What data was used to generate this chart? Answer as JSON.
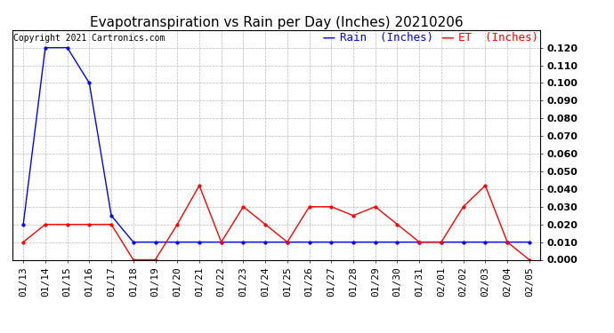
{
  "title": "Evapotranspiration vs Rain per Day (Inches) 20210206",
  "copyright": "Copyright 2021 Cartronics.com",
  "legend_rain": "Rain  (Inches)",
  "legend_et": "ET  (Inches)",
  "x_labels": [
    "01/13",
    "01/14",
    "01/15",
    "01/16",
    "01/17",
    "01/18",
    "01/19",
    "01/20",
    "01/21",
    "01/22",
    "01/23",
    "01/24",
    "01/25",
    "01/26",
    "01/27",
    "01/28",
    "01/29",
    "01/30",
    "01/31",
    "02/01",
    "02/02",
    "02/03",
    "02/04",
    "02/05"
  ],
  "rain_values": [
    0.02,
    0.12,
    0.12,
    0.1,
    0.025,
    0.01,
    0.01,
    0.01,
    0.01,
    0.01,
    0.01,
    0.01,
    0.01,
    0.01,
    0.01,
    0.01,
    0.01,
    0.01,
    0.01,
    0.01,
    0.01,
    0.01,
    0.01,
    0.01
  ],
  "et_values": [
    0.01,
    0.02,
    0.02,
    0.02,
    0.02,
    0.0,
    0.0,
    0.02,
    0.042,
    0.01,
    0.03,
    0.02,
    0.01,
    0.03,
    0.03,
    0.025,
    0.03,
    0.02,
    0.01,
    0.01,
    0.03,
    0.042,
    0.01,
    0.0
  ],
  "ylim": [
    0.0,
    0.13
  ],
  "yticks": [
    0.0,
    0.01,
    0.02,
    0.03,
    0.04,
    0.05,
    0.06,
    0.07,
    0.08,
    0.09,
    0.1,
    0.11,
    0.12
  ],
  "rain_color": "#0000ff",
  "et_color": "#ff0000",
  "background_color": "#ffffff",
  "grid_color": "#aaaaaa",
  "title_fontsize": 11,
  "copyright_fontsize": 7,
  "legend_fontsize": 9,
  "tick_label_fontsize": 8
}
